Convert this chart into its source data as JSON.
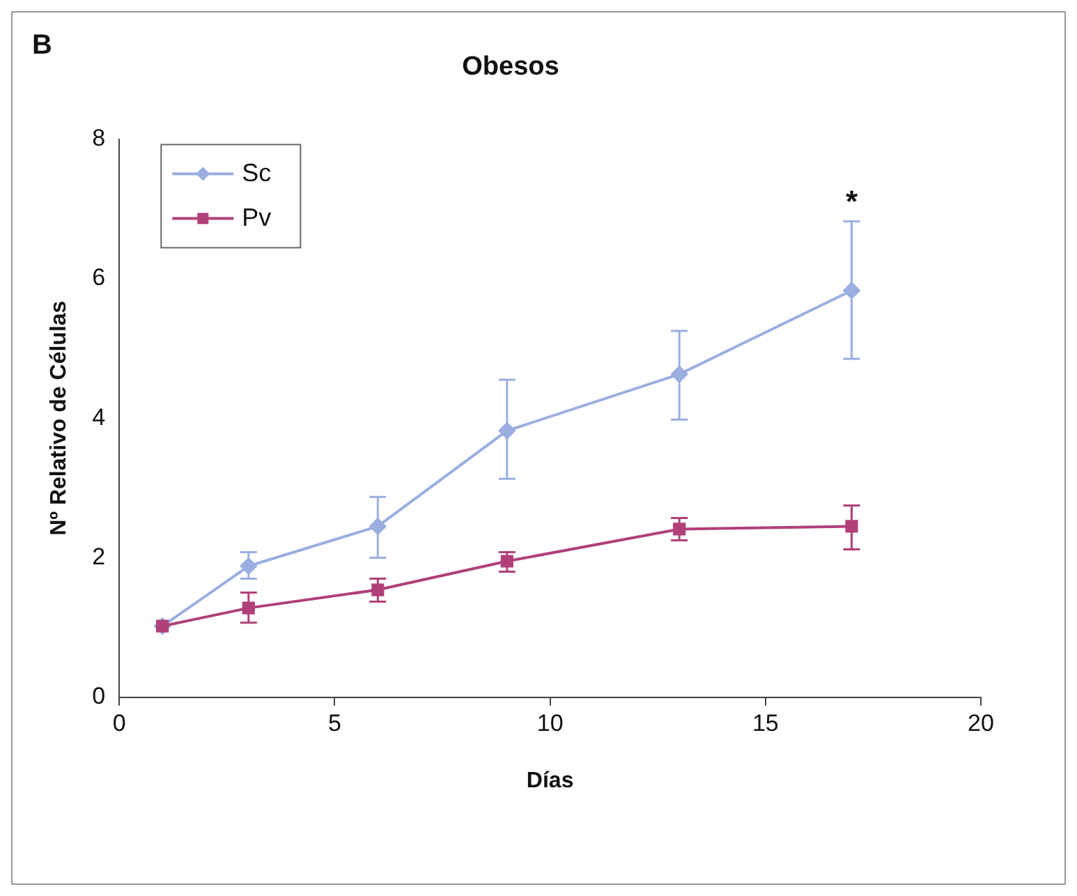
{
  "chart_data": {
    "type": "line",
    "title": "Obesos",
    "xlabel": "Días",
    "ylabel": "Nº Relativo de Células",
    "annotations": [
      "B",
      "*"
    ],
    "x": [
      1,
      3,
      6,
      9,
      13,
      17
    ],
    "series": [
      {
        "name": "Sc",
        "color": "#9aaee0",
        "marker": "diamond",
        "values": [
          1.02,
          1.88,
          2.45,
          3.82,
          4.63,
          5.83
        ],
        "errors": [
          null,
          [
            1.7,
            2.08
          ],
          [
            2.0,
            2.87
          ],
          [
            3.13,
            4.55
          ],
          [
            3.98,
            5.25
          ],
          [
            4.85,
            6.82
          ]
        ]
      },
      {
        "name": "Pv",
        "color": "#b0407a",
        "marker": "square",
        "values": [
          1.02,
          1.28,
          1.54,
          1.95,
          2.41,
          2.45
        ],
        "errors": [
          null,
          [
            1.07,
            1.5
          ],
          [
            1.37,
            1.7
          ],
          [
            1.8,
            2.08
          ],
          [
            2.25,
            2.57
          ],
          [
            2.12,
            2.75
          ]
        ]
      }
    ],
    "xlim": [
      0,
      20
    ],
    "xticks": [
      0,
      5,
      10,
      15,
      20
    ],
    "ylim": [
      0,
      8
    ],
    "yticks": [
      0,
      2,
      4,
      6,
      8
    ],
    "grid": false,
    "legend": "top left"
  }
}
